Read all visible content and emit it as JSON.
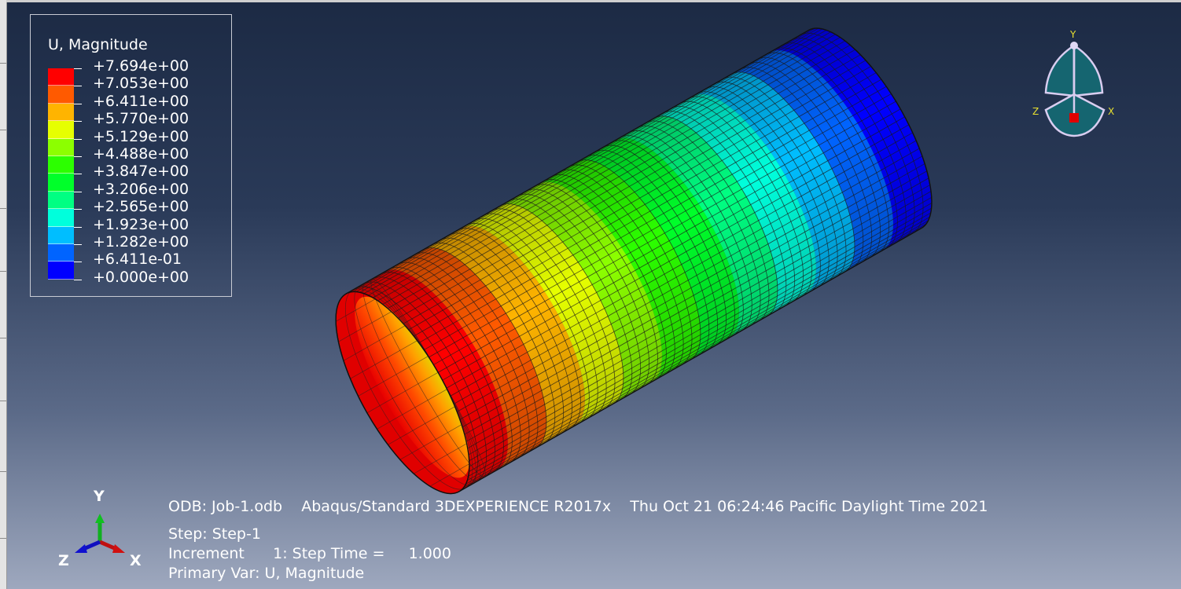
{
  "legend": {
    "title": "U, Magnitude",
    "values": [
      "+7.694e+00",
      "+7.053e+00",
      "+6.411e+00",
      "+5.770e+00",
      "+5.129e+00",
      "+4.488e+00",
      "+3.847e+00",
      "+3.206e+00",
      "+2.565e+00",
      "+1.923e+00",
      "+1.282e+00",
      "+6.411e-01",
      "+0.000e+00"
    ],
    "colors": [
      "#ff0000",
      "#ff5a00",
      "#ffb400",
      "#e6ff00",
      "#8cff00",
      "#2cff00",
      "#00ff2a",
      "#00ff82",
      "#00ffdc",
      "#00beff",
      "#0064ff",
      "#0000ff"
    ]
  },
  "view_triad": {
    "y": "Y",
    "z": "Z",
    "x": "X"
  },
  "csys_triad": {
    "y": "Y",
    "z": "Z",
    "x": "X"
  },
  "info": {
    "line1": "ODB: Job-1.odb    Abaqus/Standard 3DEXPERIENCE R2017x    Thu Oct 21 06:24:46 Pacific Daylight Time 2021",
    "line2": "Step: Step-1",
    "line3": "Increment      1: Step Time =     1.000",
    "line4": "Primary Var: U, Magnitude"
  }
}
